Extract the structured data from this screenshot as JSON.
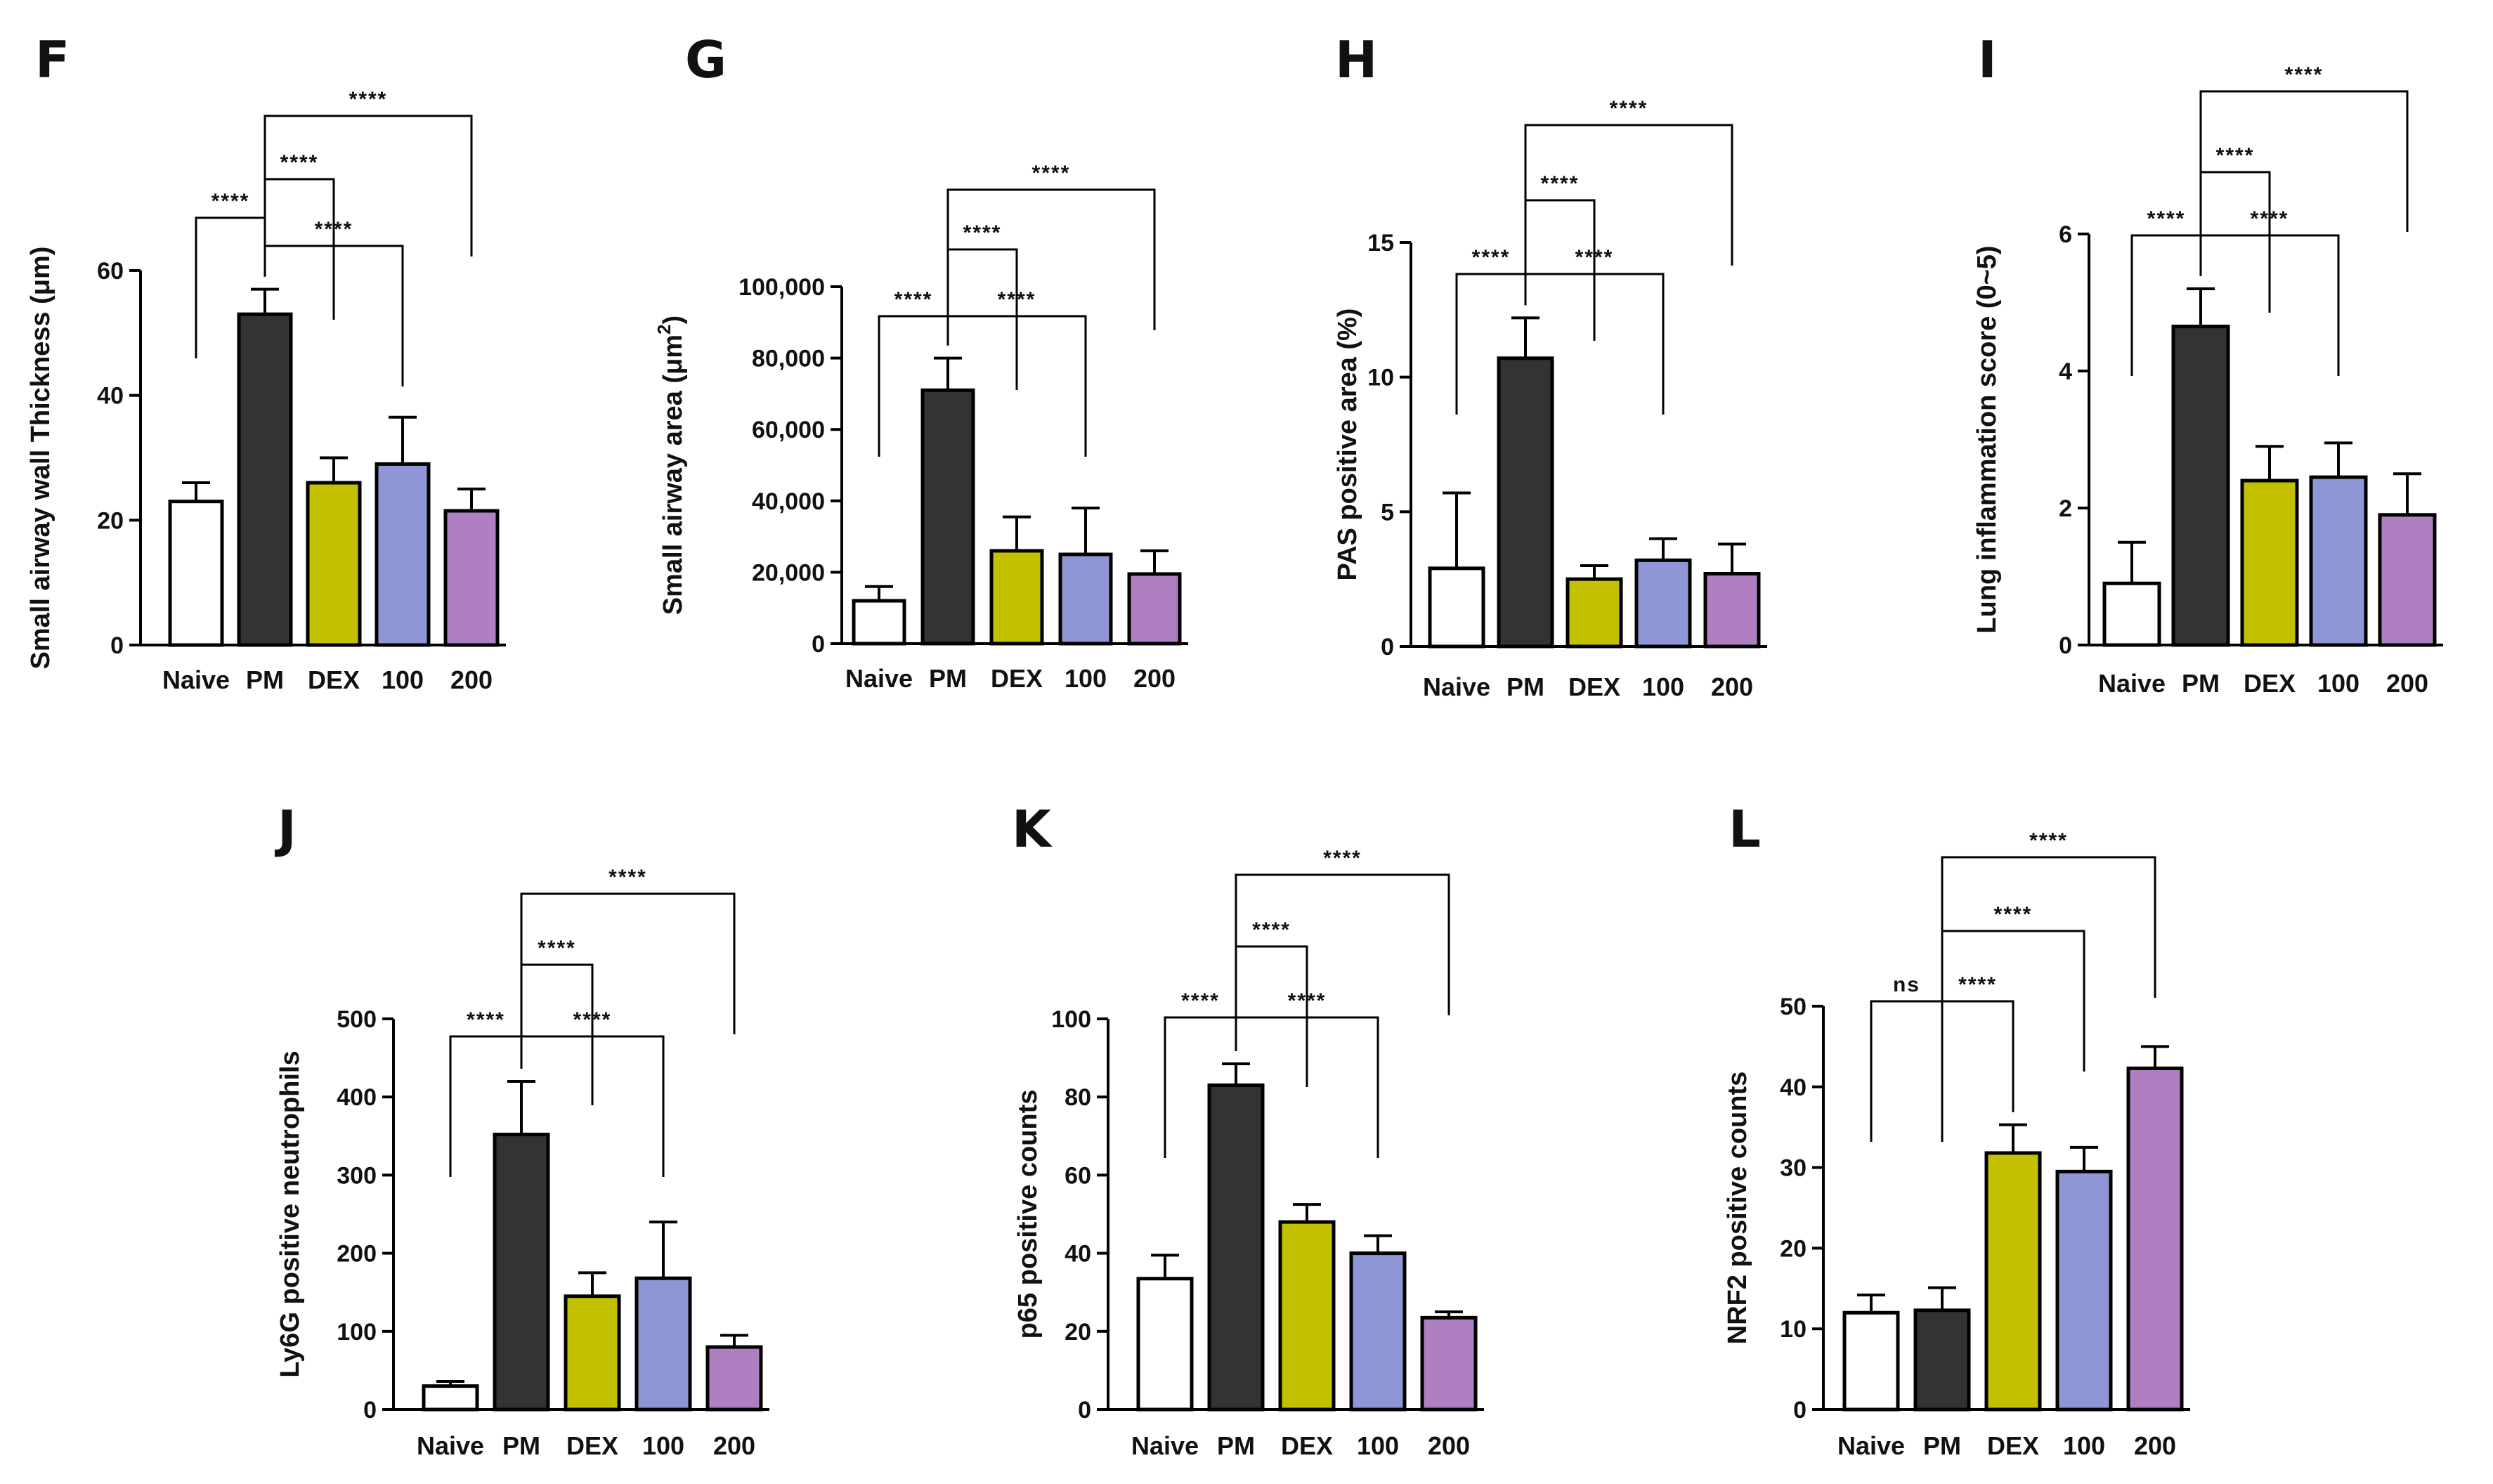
{
  "colors": {
    "Naive": "#ffffff",
    "PM": "#333333",
    "DEX": "#c3c000",
    "100": "#8f96d6",
    "200": "#b07fc1",
    "stroke": "#000000"
  },
  "chart_data": [
    {
      "type": "bar",
      "letter": "F",
      "categories": [
        "Naive",
        "PM",
        "DEX",
        "100",
        "200"
      ],
      "values": [
        23,
        53,
        26,
        29,
        21.5
      ],
      "errors": [
        3,
        4,
        4,
        7.5,
        3.5
      ],
      "ylabel": "Small airway wall Thickness (μm)",
      "ylabel_sup": "",
      "ylim": [
        0,
        60
      ],
      "yticks": [
        0,
        20,
        40,
        60
      ],
      "yticklabels": [
        "0",
        "20",
        "40",
        "60"
      ],
      "comparisons": [
        {
          "from": 0,
          "to": 1,
          "label": "****"
        },
        {
          "from": 1,
          "to": 2,
          "label": "****"
        },
        {
          "from": 1,
          "to": 3,
          "label": "****"
        },
        {
          "from": 1,
          "to": 4,
          "label": "****"
        }
      ]
    },
    {
      "type": "bar",
      "letter": "G",
      "categories": [
        "Naive",
        "PM",
        "DEX",
        "100",
        "200"
      ],
      "values": [
        12000,
        71000,
        26000,
        25000,
        19500
      ],
      "errors": [
        4000,
        9000,
        9500,
        13000,
        6500
      ],
      "ylabel": "Small airway area (μm",
      "ylabel_sup": "2",
      "ylabel_end": ")",
      "ylim": [
        0,
        100000
      ],
      "yticks": [
        0,
        20000,
        40000,
        60000,
        80000,
        100000
      ],
      "yticklabels": [
        "0",
        "20,000",
        "40,000",
        "60,000",
        "80,000",
        "100,000"
      ],
      "comparisons": [
        {
          "from": 0,
          "to": 1,
          "label": "****"
        },
        {
          "from": 1,
          "to": 2,
          "label": "****"
        },
        {
          "from": 1,
          "to": 3,
          "label": "****"
        },
        {
          "from": 1,
          "to": 4,
          "label": "****"
        }
      ]
    },
    {
      "type": "bar",
      "letter": "H",
      "categories": [
        "Naive",
        "PM",
        "DEX",
        "100",
        "200"
      ],
      "values": [
        2.9,
        10.7,
        2.5,
        3.2,
        2.7
      ],
      "errors": [
        2.8,
        1.5,
        0.5,
        0.8,
        1.1
      ],
      "ylabel": "PAS positive area (%)",
      "ylabel_sup": "",
      "ylim": [
        0,
        15
      ],
      "yticks": [
        0,
        5,
        10,
        15
      ],
      "yticklabels": [
        "0",
        "5",
        "10",
        "15"
      ],
      "comparisons": [
        {
          "from": 0,
          "to": 1,
          "label": "****"
        },
        {
          "from": 1,
          "to": 2,
          "label": "****"
        },
        {
          "from": 1,
          "to": 3,
          "label": "****"
        },
        {
          "from": 1,
          "to": 4,
          "label": "****"
        }
      ]
    },
    {
      "type": "bar",
      "letter": "I",
      "categories": [
        "Naive",
        "PM",
        "DEX",
        "100",
        "200"
      ],
      "values": [
        0.9,
        4.65,
        2.4,
        2.45,
        1.9
      ],
      "errors": [
        0.6,
        0.55,
        0.5,
        0.5,
        0.6
      ],
      "ylabel": "Lung inflammation score (0~5)",
      "ylabel_sup": "",
      "ylim": [
        0,
        6
      ],
      "yticks": [
        0,
        2,
        4,
        6
      ],
      "yticklabels": [
        "0",
        "2",
        "4",
        "6"
      ],
      "comparisons": [
        {
          "from": 0,
          "to": 1,
          "label": "****"
        },
        {
          "from": 1,
          "to": 2,
          "label": "****"
        },
        {
          "from": 1,
          "to": 3,
          "label": "****"
        },
        {
          "from": 1,
          "to": 4,
          "label": "****"
        }
      ]
    },
    {
      "type": "bar",
      "letter": "J",
      "categories": [
        "Naive",
        "PM",
        "DEX",
        "100",
        "200"
      ],
      "values": [
        30,
        352,
        145,
        168,
        80
      ],
      "errors": [
        6,
        68,
        30,
        72,
        15
      ],
      "ylabel": "Ly6G positive neutrophils",
      "ylabel_sup": "",
      "ylim": [
        0,
        500
      ],
      "yticks": [
        0,
        100,
        200,
        300,
        400,
        500
      ],
      "yticklabels": [
        "0",
        "100",
        "200",
        "300",
        "400",
        "500"
      ],
      "comparisons": [
        {
          "from": 0,
          "to": 1,
          "label": "****"
        },
        {
          "from": 1,
          "to": 2,
          "label": "****"
        },
        {
          "from": 1,
          "to": 3,
          "label": "****"
        },
        {
          "from": 1,
          "to": 4,
          "label": "****"
        }
      ]
    },
    {
      "type": "bar",
      "letter": "K",
      "categories": [
        "Naive",
        "PM",
        "DEX",
        "100",
        "200"
      ],
      "values": [
        33.5,
        83,
        48,
        40,
        23.5
      ],
      "errors": [
        6,
        5.5,
        4.5,
        4.5,
        1.5
      ],
      "ylabel": "p65 positive counts",
      "ylabel_sup": "",
      "ylim": [
        0,
        100
      ],
      "yticks": [
        0,
        20,
        40,
        60,
        80,
        100
      ],
      "yticklabels": [
        "0",
        "20",
        "40",
        "60",
        "80",
        "100"
      ],
      "comparisons": [
        {
          "from": 0,
          "to": 1,
          "label": "****"
        },
        {
          "from": 1,
          "to": 2,
          "label": "****"
        },
        {
          "from": 1,
          "to": 3,
          "label": "****"
        },
        {
          "from": 1,
          "to": 4,
          "label": "****"
        }
      ]
    },
    {
      "type": "bar",
      "letter": "L",
      "categories": [
        "Naive",
        "PM",
        "DEX",
        "100",
        "200"
      ],
      "values": [
        12,
        12.3,
        31.8,
        29.5,
        42.3
      ],
      "errors": [
        2.2,
        2.8,
        3.5,
        3,
        2.7
      ],
      "ylabel": "NRF2 positive counts",
      "ylabel_sup": "",
      "ylim": [
        0,
        50
      ],
      "yticks": [
        0,
        10,
        20,
        30,
        40,
        50
      ],
      "yticklabels": [
        "0",
        "10",
        "20",
        "30",
        "40",
        "50"
      ],
      "comparisons": [
        {
          "from": 0,
          "to": 1,
          "label": "ns"
        },
        {
          "from": 1,
          "to": 2,
          "label": "****"
        },
        {
          "from": 1,
          "to": 3,
          "label": "****"
        },
        {
          "from": 1,
          "to": 4,
          "label": "****"
        }
      ]
    }
  ]
}
